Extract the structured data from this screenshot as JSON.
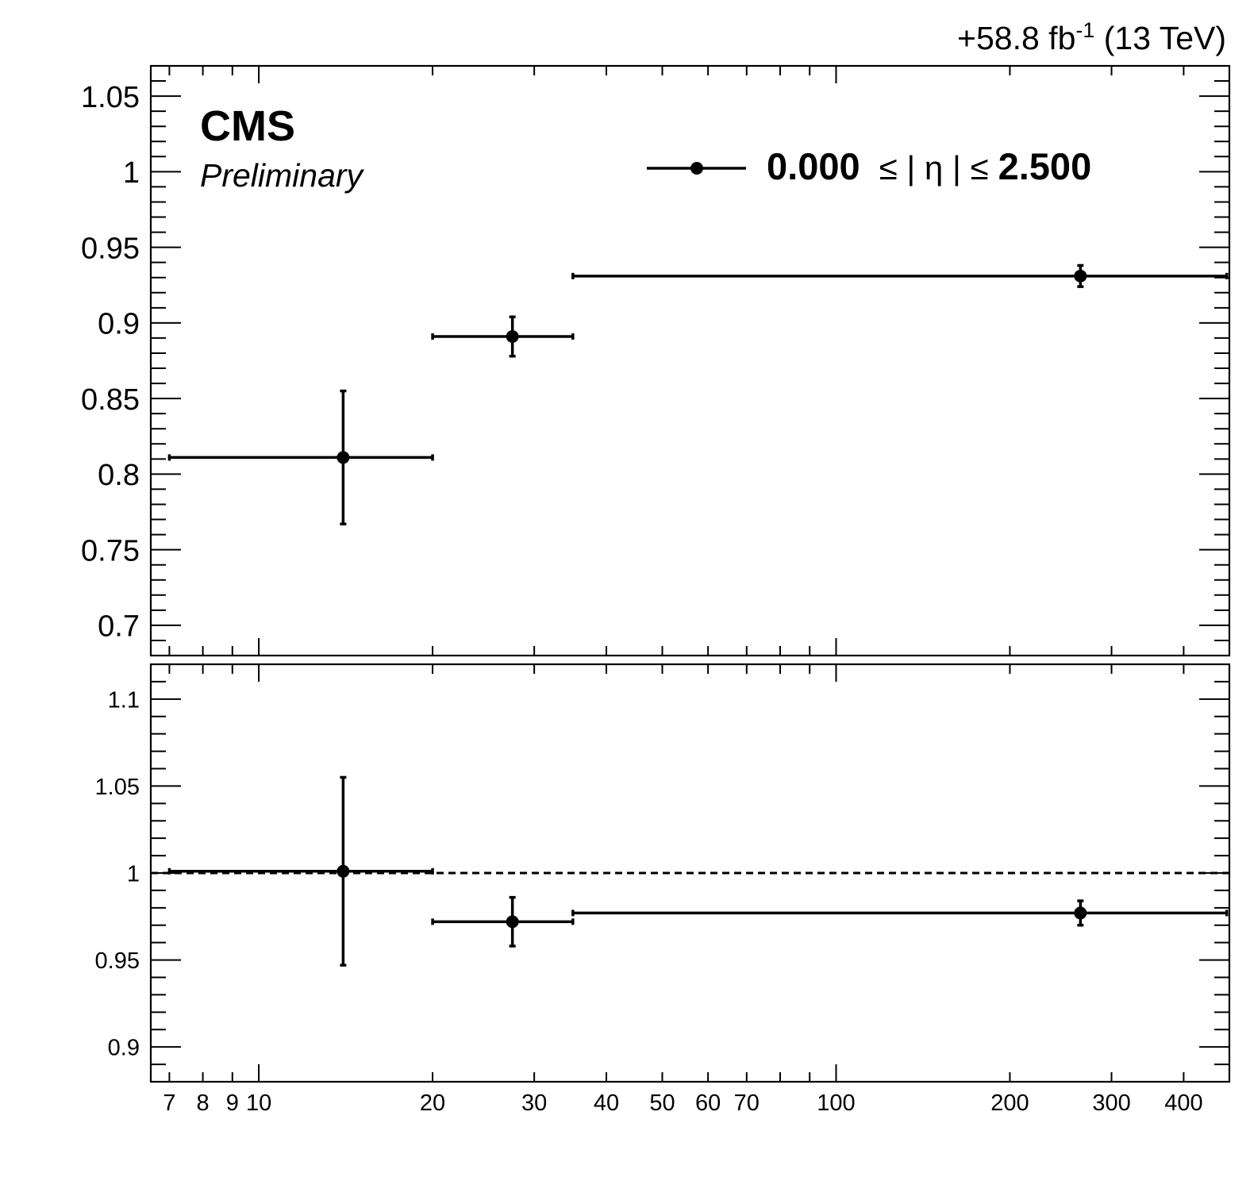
{
  "lumi_label": {
    "main": "+58.8 fb",
    "sup": "-1",
    "energy": " (13 TeV)"
  },
  "experiment_label": "CMS",
  "status_label": "Preliminary",
  "legend": {
    "low": "0.000",
    "mid": "≤ | η | ≤",
    "high": "2.500",
    "position": "top-right"
  },
  "colors": {
    "markers": "#000000",
    "frame": "#000000"
  },
  "chart_data": [
    {
      "type": "scatter",
      "panel": "top",
      "xscale": "log",
      "xlim": [
        6.5,
        480
      ],
      "ylim": [
        0.68,
        1.07
      ],
      "yticks": [
        "0.7",
        "0.75",
        "0.8",
        "0.85",
        "0.9",
        "0.95",
        "1",
        "1.05"
      ],
      "series": [
        {
          "points": [
            {
              "x": 14,
              "xlo": 7,
              "xhi": 20,
              "y": 0.811,
              "ylo": 0.767,
              "yhi": 0.855
            },
            {
              "x": 27.5,
              "xlo": 20,
              "xhi": 35,
              "y": 0.891,
              "ylo": 0.878,
              "yhi": 0.904
            },
            {
              "x": 265,
              "xlo": 35,
              "xhi": 475,
              "y": 0.931,
              "ylo": 0.924,
              "yhi": 0.938
            }
          ]
        }
      ]
    },
    {
      "type": "scatter",
      "panel": "bottom",
      "xscale": "log",
      "xlim": [
        6.5,
        480
      ],
      "ylim": [
        0.88,
        1.12
      ],
      "reference_line": 1.0,
      "yticks": [
        "0.9",
        "0.95",
        "1",
        "1.05",
        "1.1"
      ],
      "xticks": [
        "7",
        "8",
        "9",
        "10",
        "20",
        "30",
        "40",
        "50",
        "60",
        "70",
        "100",
        "200",
        "300",
        "400"
      ],
      "series": [
        {
          "points": [
            {
              "x": 14,
              "xlo": 7,
              "xhi": 20,
              "y": 1.001,
              "ylo": 0.947,
              "yhi": 1.055
            },
            {
              "x": 27.5,
              "xlo": 20,
              "xhi": 35,
              "y": 0.972,
              "ylo": 0.958,
              "yhi": 0.986
            },
            {
              "x": 265,
              "xlo": 35,
              "xhi": 475,
              "y": 0.977,
              "ylo": 0.97,
              "yhi": 0.984
            }
          ]
        }
      ]
    }
  ]
}
